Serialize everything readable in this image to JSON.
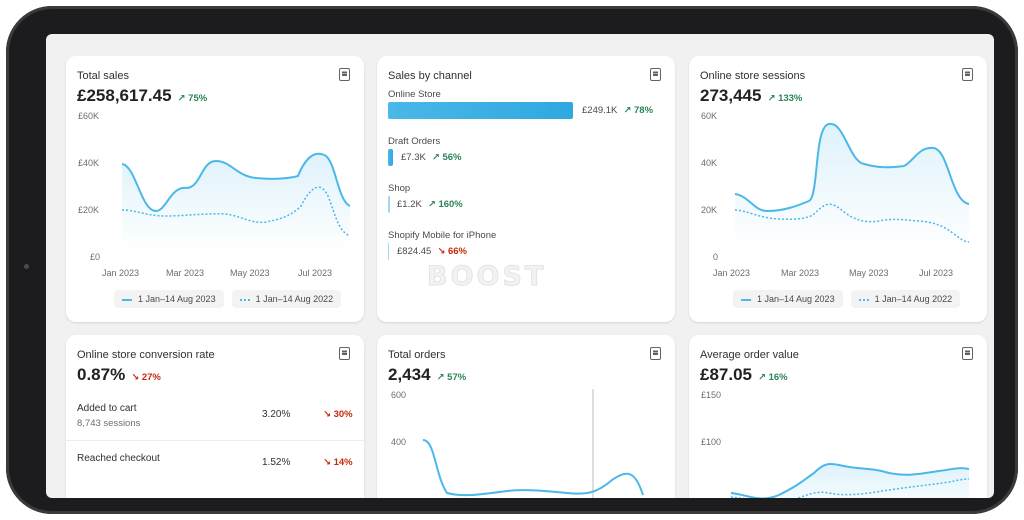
{
  "cards": {
    "total_sales": {
      "title": "Total sales",
      "value": "£258,617.45",
      "change": "75%",
      "change_dir": "up",
      "y_ticks": [
        "£60K",
        "£40K",
        "£20K",
        "£0"
      ],
      "x_ticks": [
        "Jan 2023",
        "Mar 2023",
        "May 2023",
        "Jul 2023"
      ],
      "legend": [
        "1 Jan–14 Aug 2023",
        "1 Jan–14 Aug 2022"
      ]
    },
    "sales_by_channel": {
      "title": "Sales by channel",
      "channels": [
        {
          "name": "Online Store",
          "value": "£249.1K",
          "change": "78%",
          "dir": "up",
          "share": 1.0
        },
        {
          "name": "Draft Orders",
          "value": "£7.3K",
          "change": "56%",
          "dir": "up",
          "share": 0.03
        },
        {
          "name": "Shop",
          "value": "£1.2K",
          "change": "160%",
          "dir": "up",
          "share": 0.006
        },
        {
          "name": "Shopify Mobile for iPhone",
          "value": "£824.45",
          "change": "66%",
          "dir": "down",
          "share": 0.004
        }
      ]
    },
    "online_store_sessions": {
      "title": "Online store sessions",
      "value": "273,445",
      "change": "133%",
      "change_dir": "up",
      "y_ticks": [
        "60K",
        "40K",
        "20K",
        "0"
      ],
      "x_ticks": [
        "Jan 2023",
        "Mar 2023",
        "May 2023",
        "Jul 2023"
      ],
      "legend": [
        "1 Jan–14 Aug 2023",
        "1 Jan–14 Aug 2022"
      ]
    },
    "conversion_rate": {
      "title": "Online store conversion rate",
      "value": "0.87%",
      "change": "27%",
      "change_dir": "down",
      "rows": [
        {
          "label": "Added to cart",
          "sub": "8,743 sessions",
          "value": "3.20%",
          "change": "30%",
          "dir": "down"
        },
        {
          "label": "Reached checkout",
          "sub": "",
          "value": "1.52%",
          "change": "14%",
          "dir": "down"
        }
      ]
    },
    "total_orders": {
      "title": "Total orders",
      "value": "2,434",
      "change": "57%",
      "change_dir": "up",
      "y_ticks": [
        "600",
        "400"
      ]
    },
    "average_order_value": {
      "title": "Average order value",
      "value": "£87.05",
      "change": "16%",
      "change_dir": "up",
      "y_ticks": [
        "£150",
        "£100"
      ]
    }
  },
  "watermark": "BOOST",
  "colors": {
    "accent": "#4ab8e8",
    "up": "#29845a",
    "down": "#c5280c"
  },
  "icons": {
    "export": "document-icon",
    "arrow_up": "arrow-up-right-icon",
    "arrow_down": "arrow-down-right-icon"
  }
}
